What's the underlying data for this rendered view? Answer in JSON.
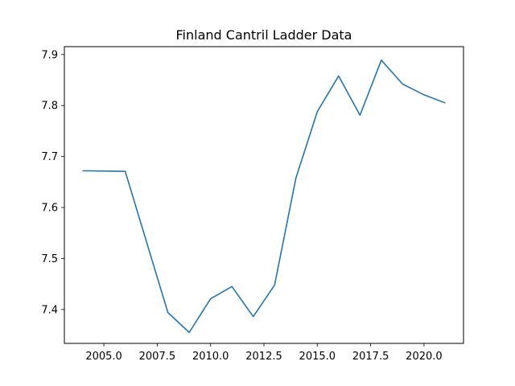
{
  "chart_data": {
    "type": "line",
    "title": "Finland Cantril Ladder Data",
    "xlabel": "",
    "ylabel": "",
    "xlim": [
      2003.15,
      2021.85
    ],
    "ylim": [
      7.3335,
      7.9155
    ],
    "x_ticks": [
      2005.0,
      2007.5,
      2010.0,
      2012.5,
      2015.0,
      2017.5,
      2020.0
    ],
    "x_tick_labels": [
      "2005.0",
      "2007.5",
      "2010.0",
      "2012.5",
      "2015.0",
      "2017.5",
      "2020.0"
    ],
    "y_ticks": [
      7.4,
      7.5,
      7.6,
      7.7,
      7.8,
      7.9
    ],
    "y_tick_labels": [
      "7.4",
      "7.5",
      "7.6",
      "7.7",
      "7.8",
      "7.9"
    ],
    "grid": false,
    "series": [
      {
        "color": "#1f77b4",
        "x": [
          2004,
          2006,
          2008,
          2009,
          2010,
          2011,
          2012,
          2013,
          2014,
          2015,
          2016,
          2017,
          2018,
          2019,
          2020,
          2021
        ],
        "y": [
          7.672,
          7.671,
          7.394,
          7.355,
          7.421,
          7.445,
          7.386,
          7.448,
          7.658,
          7.788,
          7.858,
          7.781,
          7.889,
          7.842,
          7.821,
          7.805
        ]
      }
    ]
  }
}
